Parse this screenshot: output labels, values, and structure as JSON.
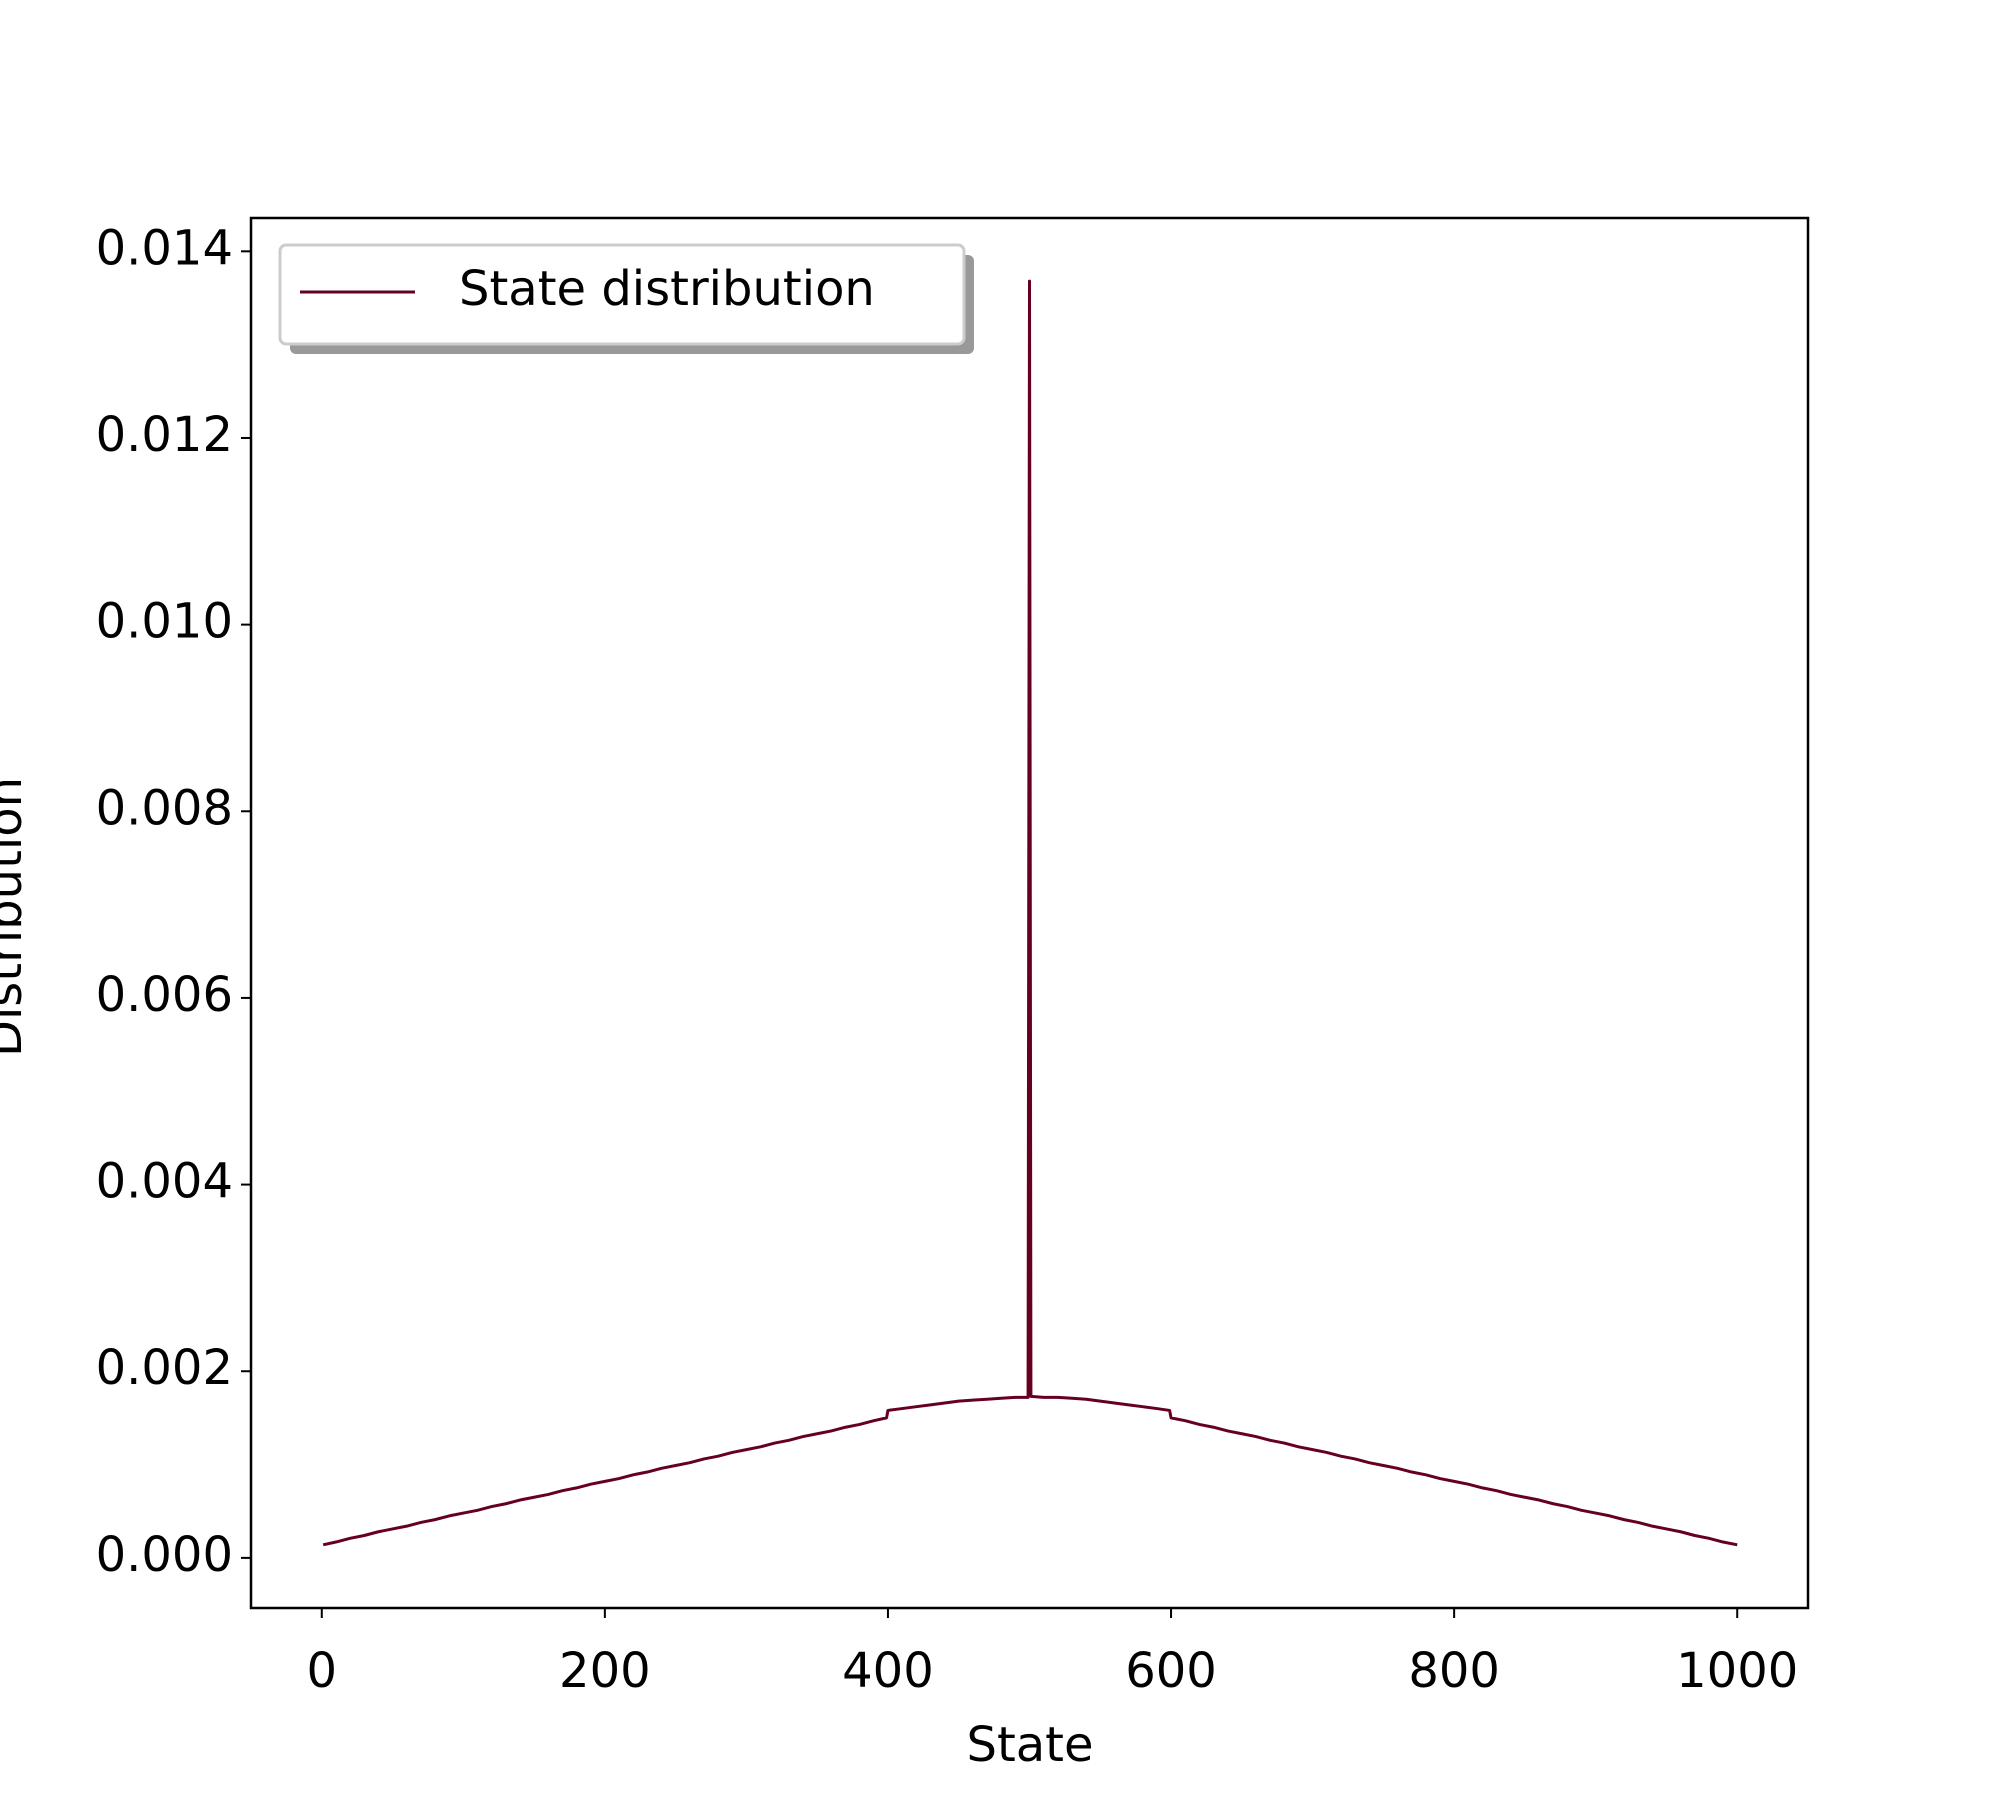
{
  "chart_data": {
    "type": "line",
    "xlabel": "State",
    "ylabel": "Distribution",
    "x": [
      1,
      10,
      20,
      30,
      40,
      50,
      60,
      70,
      80,
      90,
      100,
      110,
      120,
      130,
      140,
      150,
      160,
      170,
      180,
      190,
      200,
      210,
      220,
      230,
      240,
      250,
      260,
      270,
      280,
      290,
      300,
      310,
      320,
      330,
      340,
      350,
      360,
      370,
      380,
      390,
      399,
      400,
      410,
      420,
      430,
      440,
      450,
      460,
      470,
      480,
      490,
      499,
      500,
      501,
      510,
      520,
      530,
      540,
      550,
      560,
      570,
      580,
      590,
      599,
      600,
      610,
      620,
      630,
      640,
      650,
      660,
      670,
      680,
      690,
      700,
      710,
      720,
      730,
      740,
      750,
      760,
      770,
      780,
      790,
      800,
      810,
      820,
      830,
      840,
      850,
      860,
      870,
      880,
      890,
      900,
      910,
      920,
      930,
      940,
      950,
      960,
      970,
      980,
      990,
      1000
    ],
    "series": [
      {
        "name": "State distribution",
        "color": "#67001f",
        "values": [
          0.00014,
          0.00017,
          0.00021,
          0.00024,
          0.00028,
          0.00031,
          0.00034,
          0.00038,
          0.00041,
          0.00045,
          0.00048,
          0.00051,
          0.00055,
          0.00058,
          0.00062,
          0.00065,
          0.00068,
          0.00072,
          0.00075,
          0.00079,
          0.00082,
          0.00085,
          0.00089,
          0.00092,
          0.00096,
          0.00099,
          0.00102,
          0.00106,
          0.00109,
          0.00113,
          0.00116,
          0.00119,
          0.00123,
          0.00126,
          0.0013,
          0.00133,
          0.00136,
          0.0014,
          0.00143,
          0.00147,
          0.0015,
          0.00158,
          0.0016,
          0.00162,
          0.00164,
          0.00166,
          0.00168,
          0.00169,
          0.0017,
          0.00171,
          0.00172,
          0.00172,
          0.01368,
          0.00173,
          0.00172,
          0.00172,
          0.00171,
          0.0017,
          0.00168,
          0.00166,
          0.00164,
          0.00162,
          0.0016,
          0.00158,
          0.0015,
          0.00147,
          0.00143,
          0.0014,
          0.00136,
          0.00133,
          0.0013,
          0.00126,
          0.00123,
          0.00119,
          0.00116,
          0.00113,
          0.00109,
          0.00106,
          0.00102,
          0.00099,
          0.00096,
          0.00092,
          0.00089,
          0.00085,
          0.00082,
          0.00079,
          0.00075,
          0.00072,
          0.00068,
          0.00065,
          0.00062,
          0.00058,
          0.00055,
          0.00051,
          0.00048,
          0.00045,
          0.00041,
          0.00038,
          0.00034,
          0.00031,
          0.00028,
          0.00024,
          0.00021,
          0.00017,
          0.00014
        ]
      }
    ],
    "xlim": [
      -50,
      1050
    ],
    "xticks": [
      0,
      200,
      400,
      600,
      800,
      1000
    ],
    "ylim": [
      -0.000537,
      0.014357
    ],
    "yticks": [
      {
        "value": 0,
        "label": "0.000"
      },
      {
        "value": 0.002,
        "label": "0.002"
      },
      {
        "value": 0.004,
        "label": "0.004"
      },
      {
        "value": 0.006,
        "label": "0.006"
      },
      {
        "value": 0.008,
        "label": "0.008"
      },
      {
        "value": 0.01,
        "label": "0.010"
      },
      {
        "value": 0.012,
        "label": "0.012"
      },
      {
        "value": 0.014,
        "label": "0.014"
      }
    ],
    "legend": "upper left"
  }
}
